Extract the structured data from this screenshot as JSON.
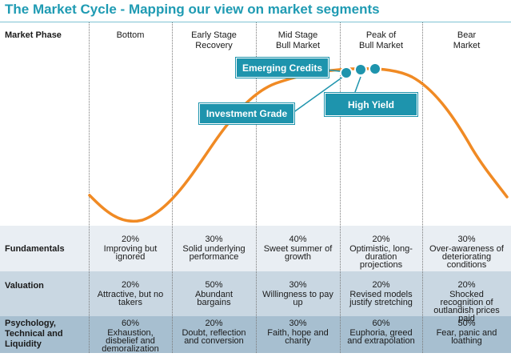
{
  "title": "The Market Cycle - Mapping our view on market segments",
  "header": {
    "row_label": "Market Phase",
    "phases": [
      [
        "Bottom"
      ],
      [
        "Early Stage",
        "Recovery"
      ],
      [
        "Mid Stage",
        "Bull Market"
      ],
      [
        "Peak of",
        "Bull Market"
      ],
      [
        "Bear",
        "Market"
      ]
    ]
  },
  "callouts": {
    "emerging_credits": "Emerging Credits",
    "investment_grade": "Investment Grade",
    "high_yield": "High Yield"
  },
  "rows": [
    {
      "label": "Fundamentals",
      "cells": [
        {
          "pct": "20%",
          "text": "Improving but ignored"
        },
        {
          "pct": "30%",
          "text": "Solid underlying performance"
        },
        {
          "pct": "40%",
          "text": "Sweet summer of growth"
        },
        {
          "pct": "20%",
          "text": "Optimistic, long-duration projections"
        },
        {
          "pct": "30%",
          "text": "Over-awareness of deteriorating conditions"
        }
      ]
    },
    {
      "label": "Valuation",
      "cells": [
        {
          "pct": "20%",
          "text": "Attractive, but no takers"
        },
        {
          "pct": "50%",
          "text": "Abundant bargains"
        },
        {
          "pct": "30%",
          "text": "Willingness to pay up"
        },
        {
          "pct": "20%",
          "text": "Revised models justify stretching"
        },
        {
          "pct": "20%",
          "text": "Shocked recognition of outlandish prices paid"
        }
      ]
    },
    {
      "label": "Psychology, Technical and Liquidity",
      "cells": [
        {
          "pct": "60%",
          "text": "Exhaustion, disbelief and demoralization"
        },
        {
          "pct": "20%",
          "text": "Doubt, reflection and conversion"
        },
        {
          "pct": "30%",
          "text": "Faith, hope and charity"
        },
        {
          "pct": "60%",
          "text": "Euphoria, greed and extrapolation"
        },
        {
          "pct": "50%",
          "text": "Fear, panic and loathing"
        }
      ]
    }
  ],
  "colors": {
    "title": "#1f9bb3",
    "curve": "#f08a24",
    "callout": "#1e94ad"
  }
}
